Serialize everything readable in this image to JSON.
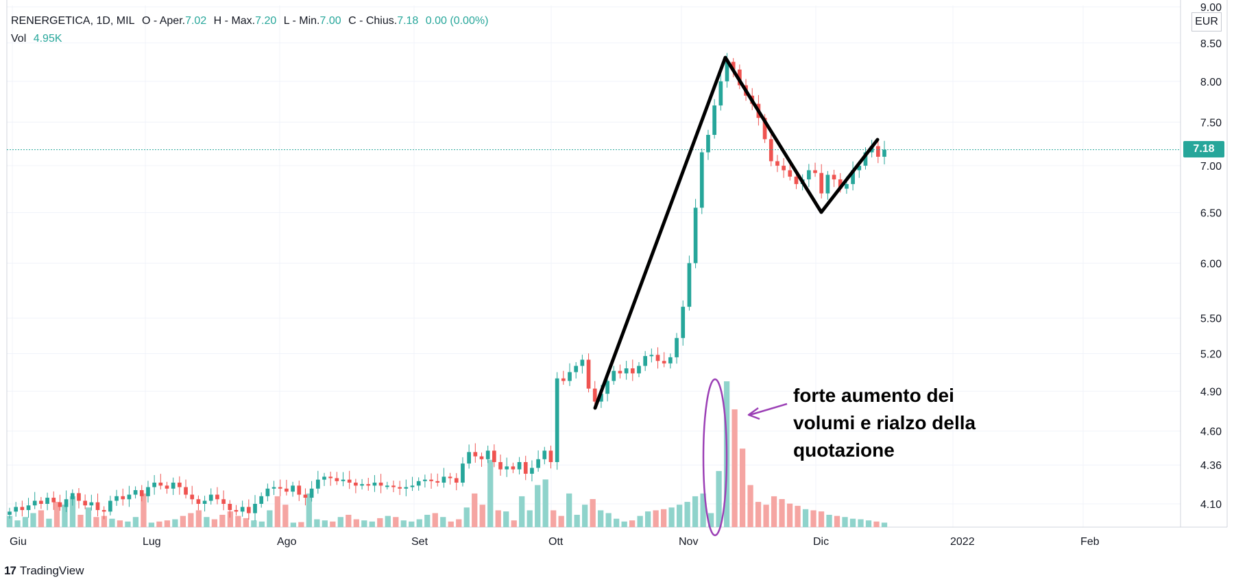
{
  "legend": {
    "ticker": "RENERGETICA, 1D, MIL",
    "open_label": "O - Aper.",
    "open": "7.02",
    "high_label": "H - Max.",
    "high": "7.20",
    "low_label": "L - Min.",
    "low": "7.00",
    "close_label": "C - Chius.",
    "close": "7.18",
    "change": "0.00 (0.00%)",
    "vol_label": "Vol",
    "vol": "4.95K"
  },
  "price_axis": {
    "currency": "EUR",
    "last_price": "7.18",
    "ticks": [
      "9.00",
      "8.50",
      "8.00",
      "7.50",
      "7.00",
      "6.50",
      "6.00",
      "5.50",
      "5.20",
      "4.90",
      "4.60",
      "4.36",
      "4.10"
    ]
  },
  "time_axis": {
    "labels": [
      "Giu",
      "Lug",
      "Ago",
      "Set",
      "Ott",
      "Nov",
      "Dic",
      "2022",
      "Feb"
    ]
  },
  "annotation": {
    "lines": [
      "forte aumento dei",
      "volumi e rialzo della",
      "quotazione"
    ]
  },
  "branding": {
    "logo": "17",
    "name": "TradingView"
  },
  "colors": {
    "up": "#26a69a",
    "down": "#ef5350",
    "vol_up": "#8fd3cb",
    "vol_down": "#f5a5a2",
    "annot_purple": "#9b3fb5"
  },
  "chart_data": {
    "type": "candlestick",
    "title": "RENERGETICA, 1D, MIL",
    "ylabel": "EUR",
    "y_scale": "log",
    "ylim": [
      4.0,
      9.0
    ],
    "x_labels": [
      "Giu",
      "Lug",
      "Ago",
      "Set",
      "Ott",
      "Nov",
      "Dic",
      "2022",
      "Feb"
    ],
    "series": [
      {
        "name": "phase_1_jun_sep",
        "values": [
          4.05,
          4.08,
          4.06,
          4.09,
          4.12,
          4.1,
          4.14,
          4.11,
          4.08,
          4.13,
          4.17,
          4.12,
          4.09,
          4.11,
          4.06,
          4.05,
          4.12,
          4.15,
          4.13,
          4.16,
          4.19,
          4.15,
          4.21,
          4.24,
          4.22,
          4.2,
          4.24,
          4.21,
          4.16,
          4.13,
          4.1,
          4.12,
          4.16,
          4.13,
          4.1,
          4.06,
          4.05,
          4.08,
          4.04,
          4.1,
          4.15,
          4.2,
          4.21,
          4.2,
          4.18,
          4.22,
          4.16,
          4.14,
          4.2,
          4.26,
          4.28,
          4.27,
          4.25,
          4.26,
          4.24,
          4.22,
          4.23,
          4.22,
          4.24,
          4.22,
          4.22,
          4.21,
          4.2,
          4.21,
          4.22,
          4.25,
          4.26,
          4.25,
          4.24,
          4.28,
          4.27,
          4.24,
          4.37,
          4.45,
          4.42,
          4.4
        ]
      },
      {
        "name": "phase_2_sep_dec",
        "values": [
          4.46,
          4.38,
          4.33,
          4.35,
          4.33,
          4.38,
          4.3,
          4.34,
          4.4,
          4.46,
          4.38,
          5.0,
          4.98,
          5.05,
          5.1,
          5.15,
          4.92,
          4.82,
          4.88,
          4.98,
          5.06,
          5.04,
          5.08,
          5.04,
          5.1,
          5.18,
          5.19,
          5.14,
          5.12,
          5.17,
          5.33,
          5.6,
          6.0,
          6.55,
          7.15,
          7.35,
          7.7,
          8.0,
          8.25,
          8.15,
          7.95,
          7.82,
          7.72,
          7.55,
          7.3,
          7.05,
          7.0,
          6.95,
          6.88,
          6.8,
          6.85,
          6.95,
          6.92,
          6.7,
          6.9,
          6.85,
          6.75,
          6.8,
          6.95,
          7.0,
          7.15,
          7.22,
          7.1,
          7.18
        ]
      }
    ],
    "volume": [
      20,
      12,
      18,
      25,
      30,
      15,
      45,
      40,
      55,
      22,
      35,
      18,
      20,
      15,
      12,
      10,
      18,
      60,
      8,
      10,
      12,
      14,
      20,
      25,
      30,
      18,
      14,
      22,
      28,
      20,
      16,
      12,
      10,
      30,
      55,
      40,
      8,
      9,
      60,
      14,
      12,
      10,
      18,
      22,
      14,
      12,
      10,
      16,
      20,
      18,
      12,
      10,
      14,
      22,
      25,
      18,
      10,
      14,
      35,
      60,
      40,
      120,
      30,
      28,
      12,
      55,
      30,
      75,
      85,
      30,
      20,
      60,
      22,
      40,
      50,
      30,
      25,
      15,
      10,
      12,
      20,
      28,
      30,
      32,
      35,
      40,
      45,
      55,
      60,
      25,
      100,
      260,
      210,
      140,
      75,
      45,
      40,
      55,
      50,
      42,
      38,
      32,
      30,
      28,
      22,
      20,
      18,
      15,
      14,
      12,
      10,
      8
    ]
  }
}
